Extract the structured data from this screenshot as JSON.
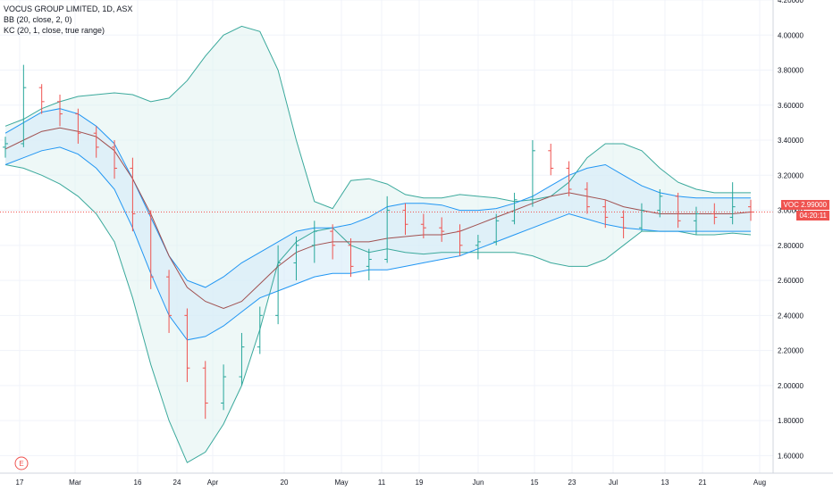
{
  "legend": {
    "title": "VOCUS GROUP LIMITED, 1D, ASX",
    "bb": "BB (20, close, 2, 0)",
    "kc": "KC (20, 1, close, true range)"
  },
  "price_tags": {
    "symbol_value": "VOC 2.99000",
    "countdown": "04:20:11"
  },
  "earnings_marker": "E",
  "colors": {
    "up_bar": "#26a69a",
    "down_bar": "#ef5350",
    "bb_band": "#3ba99c",
    "bb_fill": "#e0f3f0",
    "kc_band": "#2196f3",
    "kc_fill": "#d6ebf8",
    "basis": "#a05050",
    "price_tag": "#ef5350"
  },
  "chart_data": {
    "type": "line",
    "title": "VOCUS GROUP LIMITED, 1D, ASX",
    "y_ticks": [
      "4.20000",
      "4.00000",
      "3.80000",
      "3.60000",
      "3.40000",
      "3.20000",
      "3.00000",
      "2.80000",
      "2.60000",
      "2.40000",
      "2.20000",
      "2.00000",
      "1.80000",
      "1.60000"
    ],
    "ylim": [
      1.5,
      4.2
    ],
    "x_ticks": [
      "17",
      "Mar",
      "16",
      "24",
      "Apr",
      "20",
      "May",
      "11",
      "19",
      "Jun",
      "15",
      "23",
      "Jul",
      "13",
      "21",
      "Aug"
    ],
    "series": [
      {
        "name": "BB (20, close, 2, 0)",
        "upper": [
          3.48,
          3.52,
          3.58,
          3.62,
          3.65,
          3.66,
          3.67,
          3.66,
          3.62,
          3.64,
          3.74,
          3.88,
          4.0,
          4.05,
          4.02,
          3.8,
          3.4,
          3.05,
          3.01,
          3.17,
          3.18,
          3.15,
          3.09,
          3.07,
          3.07,
          3.09,
          3.08,
          3.07,
          3.05,
          3.06,
          3.08,
          3.16,
          3.3,
          3.38,
          3.38,
          3.34,
          3.24,
          3.16,
          3.12,
          3.1,
          3.1,
          3.1
        ],
        "lower": [
          3.26,
          3.24,
          3.2,
          3.15,
          3.08,
          2.98,
          2.82,
          2.5,
          2.12,
          1.8,
          1.56,
          1.62,
          1.78,
          2.0,
          2.32,
          2.7,
          2.82,
          2.88,
          2.9,
          2.8,
          2.76,
          2.78,
          2.76,
          2.75,
          2.76,
          2.76,
          2.76,
          2.76,
          2.76,
          2.74,
          2.7,
          2.68,
          2.68,
          2.72,
          2.8,
          2.88,
          2.88,
          2.88,
          2.86,
          2.86,
          2.87,
          2.86
        ]
      },
      {
        "name": "KC (20, 1, close, true range)",
        "upper": [
          3.44,
          3.5,
          3.56,
          3.58,
          3.55,
          3.48,
          3.38,
          3.18,
          2.96,
          2.74,
          2.6,
          2.56,
          2.62,
          2.7,
          2.76,
          2.82,
          2.88,
          2.9,
          2.9,
          2.92,
          2.96,
          3.02,
          3.04,
          3.04,
          3.03,
          3.0,
          3.0,
          3.01,
          3.04,
          3.08,
          3.14,
          3.2,
          3.24,
          3.26,
          3.2,
          3.14,
          3.1,
          3.08,
          3.07,
          3.07,
          3.07,
          3.07
        ],
        "basis": [
          3.35,
          3.4,
          3.45,
          3.47,
          3.45,
          3.42,
          3.34,
          3.18,
          2.98,
          2.74,
          2.56,
          2.48,
          2.44,
          2.48,
          2.58,
          2.68,
          2.76,
          2.8,
          2.82,
          2.82,
          2.82,
          2.84,
          2.85,
          2.86,
          2.86,
          2.88,
          2.92,
          2.96,
          3.0,
          3.04,
          3.08,
          3.1,
          3.08,
          3.06,
          3.02,
          3.0,
          2.98,
          2.98,
          2.98,
          2.98,
          2.98,
          2.99
        ],
        "lower": [
          3.26,
          3.3,
          3.34,
          3.36,
          3.32,
          3.24,
          3.12,
          2.9,
          2.64,
          2.4,
          2.26,
          2.28,
          2.34,
          2.42,
          2.5,
          2.54,
          2.58,
          2.62,
          2.64,
          2.64,
          2.66,
          2.66,
          2.68,
          2.7,
          2.72,
          2.74,
          2.78,
          2.82,
          2.86,
          2.9,
          2.94,
          2.98,
          2.95,
          2.92,
          2.9,
          2.89,
          2.88,
          2.88,
          2.88,
          2.88,
          2.88,
          2.88
        ]
      }
    ],
    "ohlc": [
      [
        3.36,
        3.42,
        3.3,
        3.38
      ],
      [
        3.38,
        3.83,
        3.36,
        3.7
      ],
      [
        3.7,
        3.72,
        3.55,
        3.62
      ],
      [
        3.62,
        3.66,
        3.48,
        3.55
      ],
      [
        3.55,
        3.58,
        3.38,
        3.44
      ],
      [
        3.44,
        3.48,
        3.3,
        3.36
      ],
      [
        3.36,
        3.4,
        3.18,
        3.24
      ],
      [
        3.24,
        3.3,
        2.88,
        2.98
      ],
      [
        2.98,
        3.0,
        2.55,
        2.62
      ],
      [
        2.62,
        2.66,
        2.3,
        2.4
      ],
      [
        2.4,
        2.44,
        2.02,
        2.1
      ],
      [
        2.1,
        2.14,
        1.81,
        1.9
      ],
      [
        1.9,
        2.12,
        1.86,
        2.05
      ],
      [
        2.05,
        2.3,
        2.0,
        2.22
      ],
      [
        2.22,
        2.45,
        2.18,
        2.4
      ],
      [
        2.4,
        2.8,
        2.35,
        2.7
      ],
      [
        2.7,
        2.85,
        2.6,
        2.8
      ],
      [
        2.8,
        2.94,
        2.7,
        2.88
      ],
      [
        2.88,
        2.92,
        2.72,
        2.8
      ],
      [
        2.8,
        2.84,
        2.62,
        2.68
      ],
      [
        2.68,
        2.78,
        2.6,
        2.72
      ],
      [
        2.72,
        3.08,
        2.7,
        3.0
      ],
      [
        3.0,
        3.04,
        2.86,
        2.92
      ],
      [
        2.92,
        2.98,
        2.84,
        2.9
      ],
      [
        2.9,
        2.96,
        2.82,
        2.88
      ],
      [
        2.88,
        2.92,
        2.74,
        2.8
      ],
      [
        2.8,
        2.86,
        2.72,
        2.82
      ],
      [
        2.82,
        2.98,
        2.8,
        2.94
      ],
      [
        2.94,
        3.1,
        2.92,
        3.06
      ],
      [
        3.06,
        3.4,
        3.02,
        3.34
      ],
      [
        3.34,
        3.38,
        3.2,
        3.24
      ],
      [
        3.24,
        3.28,
        3.08,
        3.12
      ],
      [
        3.12,
        3.16,
        2.98,
        3.02
      ],
      [
        3.02,
        3.06,
        2.9,
        2.96
      ],
      [
        2.96,
        3.0,
        2.84,
        2.9
      ],
      [
        2.9,
        3.04,
        2.88,
        3.0
      ],
      [
        3.0,
        3.12,
        2.96,
        3.08
      ],
      [
        3.08,
        3.1,
        2.9,
        2.94
      ],
      [
        2.94,
        3.02,
        2.86,
        2.98
      ],
      [
        2.98,
        3.04,
        2.92,
        2.96
      ],
      [
        2.96,
        3.16,
        2.92,
        3.02
      ],
      [
        3.02,
        3.06,
        2.94,
        2.99
      ]
    ],
    "last_value": 2.99,
    "grid": true
  }
}
